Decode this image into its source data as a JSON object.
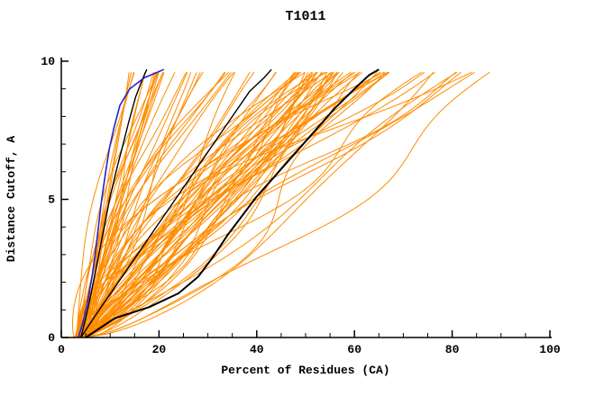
{
  "title": "T1011",
  "chart_data": {
    "type": "line",
    "title": "T1011",
    "xlabel": "Percent of Residues (CA)",
    "ylabel": "Distance Cutoff, A",
    "xlim": [
      0,
      100
    ],
    "ylim": [
      0,
      10
    ],
    "x_major_ticks": [
      0,
      20,
      40,
      60,
      80,
      100
    ],
    "x_minor_step": 5,
    "y_major_ticks": [
      0,
      5,
      10
    ],
    "y_minor_step": 1,
    "grid": false,
    "legend": "none",
    "axis_color": "#000000",
    "series": [
      {
        "name": "highlighted-model-black-left",
        "color": "#000000",
        "width": 1.4,
        "points": [
          [
            4,
            0
          ],
          [
            5,
            0.7
          ],
          [
            6,
            1.5
          ],
          [
            7,
            2.4
          ],
          [
            8,
            3.3
          ],
          [
            9,
            4.2
          ],
          [
            10,
            5.1
          ],
          [
            11.2,
            6
          ],
          [
            12.5,
            6.9
          ],
          [
            13.8,
            7.8
          ],
          [
            15.2,
            8.7
          ],
          [
            16.5,
            9.3
          ],
          [
            17.5,
            9.7
          ]
        ]
      },
      {
        "name": "highlighted-model-black-middle",
        "color": "#000000",
        "width": 1.4,
        "points": [
          [
            4,
            0
          ],
          [
            7,
            0.8
          ],
          [
            10.5,
            1.7
          ],
          [
            14,
            2.6
          ],
          [
            17.5,
            3.5
          ],
          [
            21,
            4.4
          ],
          [
            24.5,
            5.3
          ],
          [
            28,
            6.2
          ],
          [
            31.5,
            7.1
          ],
          [
            35,
            8
          ],
          [
            38.5,
            8.9
          ],
          [
            41.5,
            9.4
          ],
          [
            43,
            9.7
          ]
        ]
      },
      {
        "name": "highlighted-model-black-right",
        "color": "#000000",
        "width": 2,
        "points": [
          [
            5,
            0
          ],
          [
            11,
            0.7
          ],
          [
            18,
            1.1
          ],
          [
            24,
            1.6
          ],
          [
            28,
            2.2
          ],
          [
            31,
            2.9
          ],
          [
            34,
            3.7
          ],
          [
            37,
            4.4
          ],
          [
            40,
            5.1
          ],
          [
            44,
            5.9
          ],
          [
            48,
            6.7
          ],
          [
            52,
            7.5
          ],
          [
            56,
            8.3
          ],
          [
            60,
            9
          ],
          [
            63,
            9.5
          ],
          [
            65,
            9.7
          ]
        ]
      },
      {
        "name": "highlighted-model-blue",
        "color": "#2222CC",
        "width": 1.6,
        "points": [
          [
            3.5,
            0
          ],
          [
            4.5,
            0.6
          ],
          [
            5.5,
            1.4
          ],
          [
            6.3,
            2.2
          ],
          [
            7,
            3.1
          ],
          [
            7.6,
            4
          ],
          [
            8.2,
            4.9
          ],
          [
            9,
            5.9
          ],
          [
            9.8,
            6.8
          ],
          [
            10.8,
            7.6
          ],
          [
            12,
            8.4
          ],
          [
            14,
            9
          ],
          [
            17,
            9.4
          ],
          [
            21,
            9.7
          ]
        ]
      }
    ],
    "bundle": {
      "name": "server-model-curves-orange",
      "color": "#FF8C00",
      "count": 88,
      "seed": 1337,
      "y_top": 9.7,
      "x_start_range": [
        2.5,
        6
      ],
      "shape_power_range": [
        0.6,
        1.8
      ],
      "top_x_groups": [
        {
          "min": 13,
          "max": 24,
          "count": 16
        },
        {
          "min": 24,
          "max": 48,
          "count": 16
        },
        {
          "min": 48,
          "max": 68,
          "count": 46
        },
        {
          "min": 68,
          "max": 90,
          "count": 10
        }
      ]
    }
  }
}
